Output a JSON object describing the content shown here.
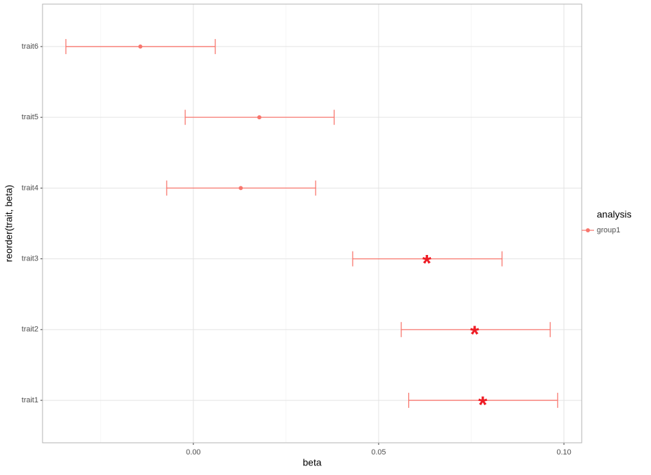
{
  "chart_data": {
    "type": "errorbar",
    "x_label": "beta",
    "y_label": "reorder(trait, beta)",
    "categories": [
      "trait1",
      "trait2",
      "trait3",
      "trait4",
      "trait5",
      "trait6"
    ],
    "series": [
      {
        "name": "group1",
        "color": "#F8766D",
        "values": [
          0.0781,
          0.0759,
          0.063,
          0.0128,
          0.0178,
          -0.0143
        ],
        "lower": [
          0.0581,
          0.0561,
          0.043,
          -0.0072,
          -0.0022,
          -0.0344
        ],
        "upper": [
          0.0983,
          0.0963,
          0.0833,
          0.033,
          0.038,
          0.0059
        ],
        "significance": [
          "*",
          "*",
          "*",
          null,
          null,
          null
        ]
      }
    ],
    "significance_color": "#ee1c25",
    "legend_title": "analysis",
    "legend": "right",
    "xlim": [
      -0.0407,
      0.1048
    ],
    "xticks": [
      {
        "value": 0,
        "label": "0.00"
      },
      {
        "value": 0.05,
        "label": "0.05"
      },
      {
        "value": 0.1,
        "label": "0.10"
      }
    ],
    "x_minor_grid": [
      -0.025,
      0.025,
      0.075
    ],
    "grid": true
  }
}
